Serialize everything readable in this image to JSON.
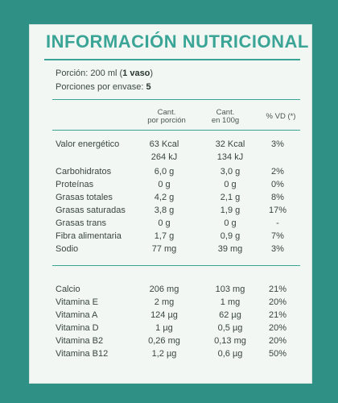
{
  "title": "INFORMACIÓN NUTRICIONAL",
  "portion_label": "Porción: 200 ml (",
  "portion_bold": "1 vaso",
  "portion_end": ")",
  "portions_label": "Porciones por envase: ",
  "portions_value": "5",
  "headers": {
    "per_portion": "Cant.\npor porción",
    "per_100g": "Cant.\nen 100g",
    "vd": "% VD (*)"
  },
  "energy": [
    {
      "name": "Valor energético",
      "portion": "63 Kcal",
      "per100": "32 Kcal",
      "vd": "3%"
    },
    {
      "name": "",
      "portion": "264 kJ",
      "per100": "134 kJ",
      "vd": ""
    }
  ],
  "nutrients": [
    {
      "name": "Carbohidratos",
      "portion": "6,0 g",
      "per100": "3,0 g",
      "vd": "2%"
    },
    {
      "name": "Proteínas",
      "portion": "0 g",
      "per100": "0 g",
      "vd": "0%"
    },
    {
      "name": "Grasas totales",
      "portion": "4,2 g",
      "per100": "2,1 g",
      "vd": "8%"
    },
    {
      "name": "Grasas saturadas",
      "portion": "3,8 g",
      "per100": "1,9 g",
      "vd": "17%"
    },
    {
      "name": "Grasas trans",
      "portion": "0 g",
      "per100": "0 g",
      "vd": "-"
    },
    {
      "name": "Fibra alimentaria",
      "portion": "1,7 g",
      "per100": "0,9 g",
      "vd": "7%"
    },
    {
      "name": "Sodio",
      "portion": "77 mg",
      "per100": "39 mg",
      "vd": "3%"
    }
  ],
  "vitamins": [
    {
      "name": "Calcio",
      "portion": "206 mg",
      "per100": "103 mg",
      "vd": "21%"
    },
    {
      "name": "Vitamina E",
      "portion": "2 mg",
      "per100": "1 mg",
      "vd": "20%"
    },
    {
      "name": "Vitamina A",
      "portion": "124 µg",
      "per100": "62 µg",
      "vd": "21%"
    },
    {
      "name": "Vitamina D",
      "portion": "1 µg",
      "per100": "0,5 µg",
      "vd": "20%"
    },
    {
      "name": "Vitamina B2",
      "portion": "0,26 mg",
      "per100": "0,13 mg",
      "vd": "20%"
    },
    {
      "name": "Vitamina B12",
      "portion": "1,2 µg",
      "per100": "0,6 µg",
      "vd": "50%"
    }
  ],
  "colors": {
    "accent": "#3aa596",
    "background": "#2f9185",
    "panel": "#f3f7f3"
  }
}
